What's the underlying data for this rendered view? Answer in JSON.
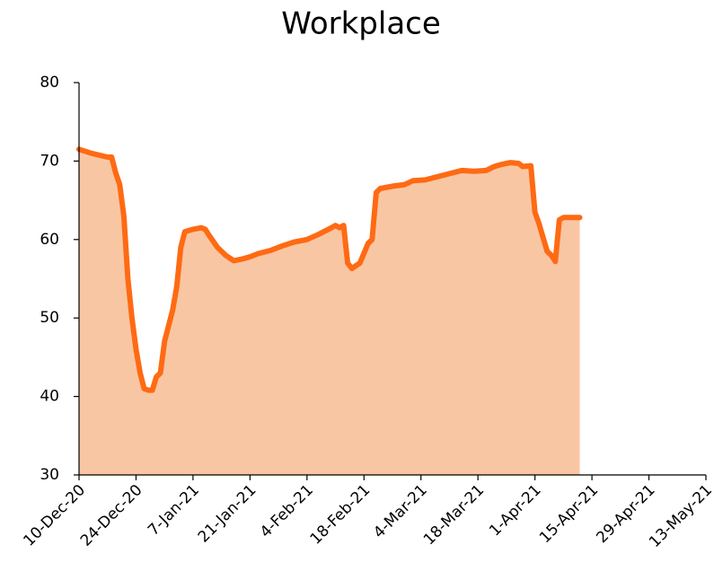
{
  "chart_data": {
    "type": "area",
    "title": "Workplace",
    "x": [
      "2020-12-10",
      "2020-12-13",
      "2020-12-17",
      "2020-12-18",
      "2020-12-19",
      "2020-12-20",
      "2020-12-21",
      "2020-12-22",
      "2020-12-23",
      "2020-12-24",
      "2020-12-25",
      "2020-12-26",
      "2020-12-27",
      "2020-12-28",
      "2020-12-29",
      "2020-12-30",
      "2020-12-31",
      "2021-01-01",
      "2021-01-02",
      "2021-01-03",
      "2021-01-04",
      "2021-01-05",
      "2021-01-07",
      "2021-01-09",
      "2021-01-10",
      "2021-01-11",
      "2021-01-13",
      "2021-01-15",
      "2021-01-17",
      "2021-01-19",
      "2021-01-21",
      "2021-01-23",
      "2021-01-26",
      "2021-01-29",
      "2021-02-01",
      "2021-02-04",
      "2021-02-07",
      "2021-02-10",
      "2021-02-11",
      "2021-02-12",
      "2021-02-13",
      "2021-02-14",
      "2021-02-15",
      "2021-02-17",
      "2021-02-19",
      "2021-02-20",
      "2021-02-21",
      "2021-02-22",
      "2021-02-25",
      "2021-02-28",
      "2021-03-02",
      "2021-03-05",
      "2021-03-08",
      "2021-03-11",
      "2021-03-14",
      "2021-03-17",
      "2021-03-20",
      "2021-03-22",
      "2021-03-24",
      "2021-03-26",
      "2021-03-28",
      "2021-03-29",
      "2021-03-31",
      "2021-04-01",
      "2021-04-02",
      "2021-04-04",
      "2021-04-05",
      "2021-04-06",
      "2021-04-07",
      "2021-04-08",
      "2021-04-12"
    ],
    "series": [
      {
        "name": "Workplace",
        "color": "#ff6a13",
        "fill": "#f9c6a3",
        "values": [
          71.5,
          71,
          70.5,
          70.5,
          68.5,
          67,
          63,
          55,
          50,
          46,
          43,
          41,
          40.8,
          40.8,
          42.5,
          43,
          47,
          49,
          51,
          54,
          59,
          61,
          61.3,
          61.5,
          61.3,
          60.5,
          59,
          58,
          57.3,
          57.5,
          57.8,
          58.2,
          58.6,
          59.2,
          59.7,
          60,
          60.7,
          61.5,
          61.8,
          61.5,
          61.8,
          57,
          56.3,
          57,
          59.5,
          60,
          66,
          66.5,
          66.8,
          67,
          67.5,
          67.6,
          68,
          68.4,
          68.8,
          68.7,
          68.8,
          69.3,
          69.6,
          69.8,
          69.7,
          69.3,
          69.4,
          63.5,
          62,
          58.5,
          58,
          57.2,
          62.5,
          62.8,
          62.8
        ]
      }
    ],
    "xlim": [
      "2020-12-10",
      "2021-05-13"
    ],
    "xticks": [
      {
        "value": "2020-12-10",
        "label": "10-Dec-20"
      },
      {
        "value": "2020-12-24",
        "label": "24-Dec-20"
      },
      {
        "value": "2021-01-07",
        "label": "7-Jan-21"
      },
      {
        "value": "2021-01-21",
        "label": "21-Jan-21"
      },
      {
        "value": "2021-02-04",
        "label": "4-Feb-21"
      },
      {
        "value": "2021-02-18",
        "label": "18-Feb-21"
      },
      {
        "value": "2021-03-04",
        "label": "4-Mar-21"
      },
      {
        "value": "2021-03-18",
        "label": "18-Mar-21"
      },
      {
        "value": "2021-04-01",
        "label": "1-Apr-21"
      },
      {
        "value": "2021-04-15",
        "label": "15-Apr-21"
      },
      {
        "value": "2021-04-29",
        "label": "29-Apr-21"
      },
      {
        "value": "2021-05-13",
        "label": "13-May-21"
      }
    ],
    "ylim": [
      30,
      80
    ],
    "yticks": [
      30,
      40,
      50,
      60,
      70,
      80
    ],
    "grid": false
  }
}
